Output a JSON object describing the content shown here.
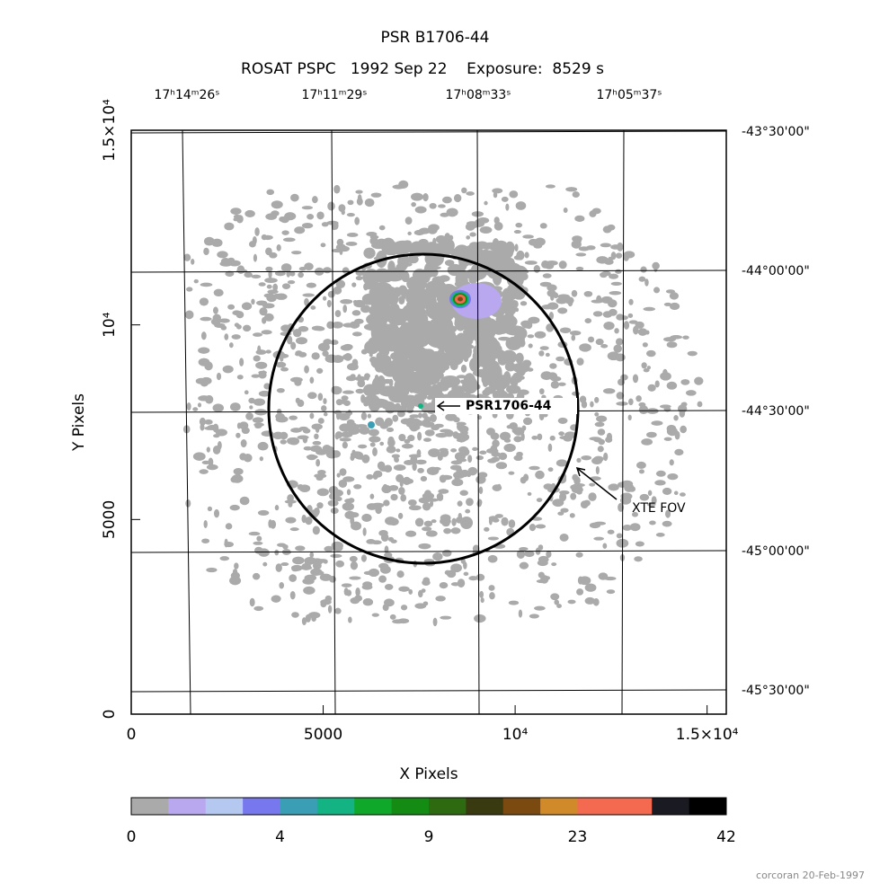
{
  "chart_data": {
    "type": "image",
    "title": "PSR B1706-44",
    "subtitle": "ROSAT PSPC   1992 Sep 22    Exposure:  8529 s",
    "x_label": "X Pixels",
    "y_label": "Y Pixels",
    "xlim": [
      0,
      15500
    ],
    "ylim": [
      0,
      15000
    ],
    "xticks": [
      0,
      5000,
      {
        "value": 10000,
        "label": "10⁴"
      },
      {
        "value": 15000,
        "label": "1.5×10⁴"
      }
    ],
    "yticks": [
      0,
      5000,
      {
        "value": 10000,
        "label": "10⁴"
      },
      {
        "value": 15000,
        "label": "1.5×10⁴"
      }
    ],
    "ra_labels": [
      "17ʰ14ᵐ26ˢ",
      "17ʰ11ᵐ29ˢ",
      "17ʰ08ᵐ33ˢ",
      "17ʰ05ᵐ37ˢ"
    ],
    "dec_labels": [
      "-43°30'00\"",
      "-44°00'00\"",
      "-44°30'00\"",
      "-45°00'00\"",
      "-45°30'00\""
    ],
    "annotations": [
      "PSR1706-44",
      "XTE FOV"
    ],
    "colorbar": {
      "colors": [
        "#aaaaaa",
        "#b9a8f0",
        "#b4c8f0",
        "#7878ee",
        "#3a9fb4",
        "#13b384",
        "#0fa82a",
        "#148c14",
        "#2e6a10",
        "#3a3a10",
        "#7a4a10",
        "#d08a2a",
        "#f46a50",
        "#f46a50",
        "#1a1a22",
        "#000000"
      ],
      "ticks": [
        0,
        4,
        9,
        23,
        42
      ]
    },
    "footer": "corcoran 20-Feb-1997"
  }
}
